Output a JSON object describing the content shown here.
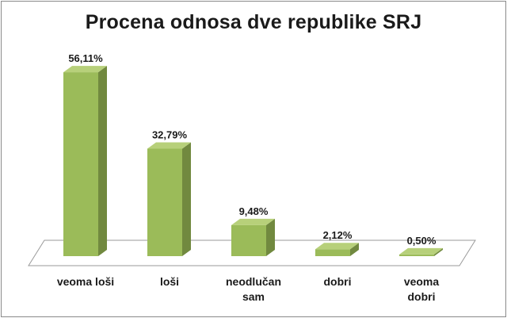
{
  "chart_data": {
    "type": "bar",
    "title": "Procena odnosa dve republike SRJ",
    "categories": [
      [
        "veoma loši"
      ],
      [
        "loši"
      ],
      [
        "neodlučan",
        "sam"
      ],
      [
        "dobri"
      ],
      [
        "veoma",
        "dobri"
      ]
    ],
    "values": [
      56.11,
      32.79,
      9.48,
      2.12,
      0.5
    ],
    "value_labels": [
      "56,11%",
      "32,79%",
      "9,48%",
      "2,12%",
      "0,50%"
    ],
    "ylim": [
      0,
      60
    ],
    "grid": false,
    "legend": "none",
    "style": "3d-column"
  },
  "colors": {
    "bar_front": "#9bbb59",
    "bar_top": "#b7d07a",
    "bar_side": "#71893f",
    "floor": "#ffffff",
    "floor_edge": "#9a9a9a"
  }
}
